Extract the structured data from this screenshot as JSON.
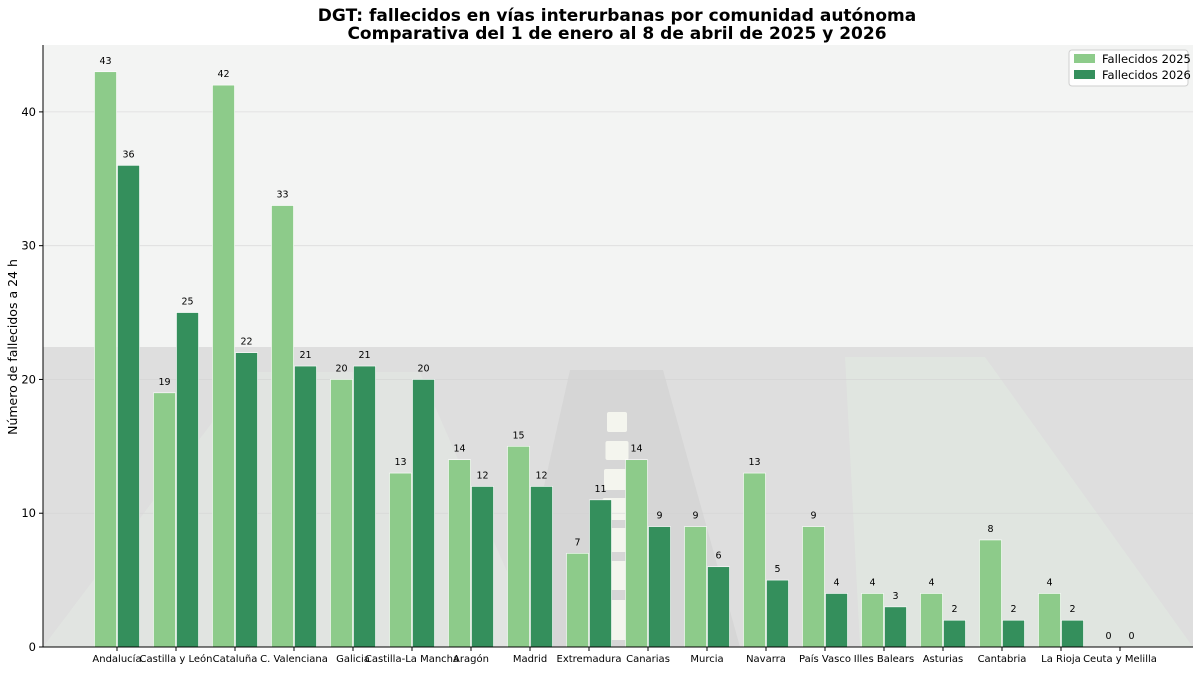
{
  "chart_data": {
    "type": "bar",
    "title": "DGT: fallecidos en vías interurbanas por comunidad autónoma",
    "subtitle": "Comparativa del 1 de enero al 8 de abril de 2025 y 2026",
    "xlabel": "",
    "ylabel": "Número de fallecidos a 24 h",
    "ylim": [
      0,
      45
    ],
    "yticks": [
      0,
      10,
      20,
      30,
      40
    ],
    "grid": "horizontal",
    "legend_position": "top-right",
    "categories": [
      "Andalucía",
      "Castilla y León",
      "Cataluña",
      "C. Valenciana",
      "Galicia",
      "Castilla-La Mancha",
      "Aragón",
      "Madrid",
      "Extremadura",
      "Canarias",
      "Murcia",
      "Navarra",
      "País Vasco",
      "Illes Balears",
      "Asturias",
      "Cantabria",
      "La Rioja",
      "Ceuta y Melilla"
    ],
    "series": [
      {
        "name": "Fallecidos 2025",
        "color": "#8dcb8a",
        "values": [
          43,
          19,
          42,
          33,
          20,
          13,
          14,
          15,
          7,
          14,
          9,
          13,
          9,
          4,
          4,
          8,
          4,
          0
        ]
      },
      {
        "name": "Fallecidos 2026",
        "color": "#348f5c",
        "values": [
          36,
          25,
          22,
          21,
          21,
          20,
          12,
          12,
          11,
          9,
          6,
          5,
          4,
          3,
          2,
          2,
          2,
          0
        ]
      }
    ]
  }
}
